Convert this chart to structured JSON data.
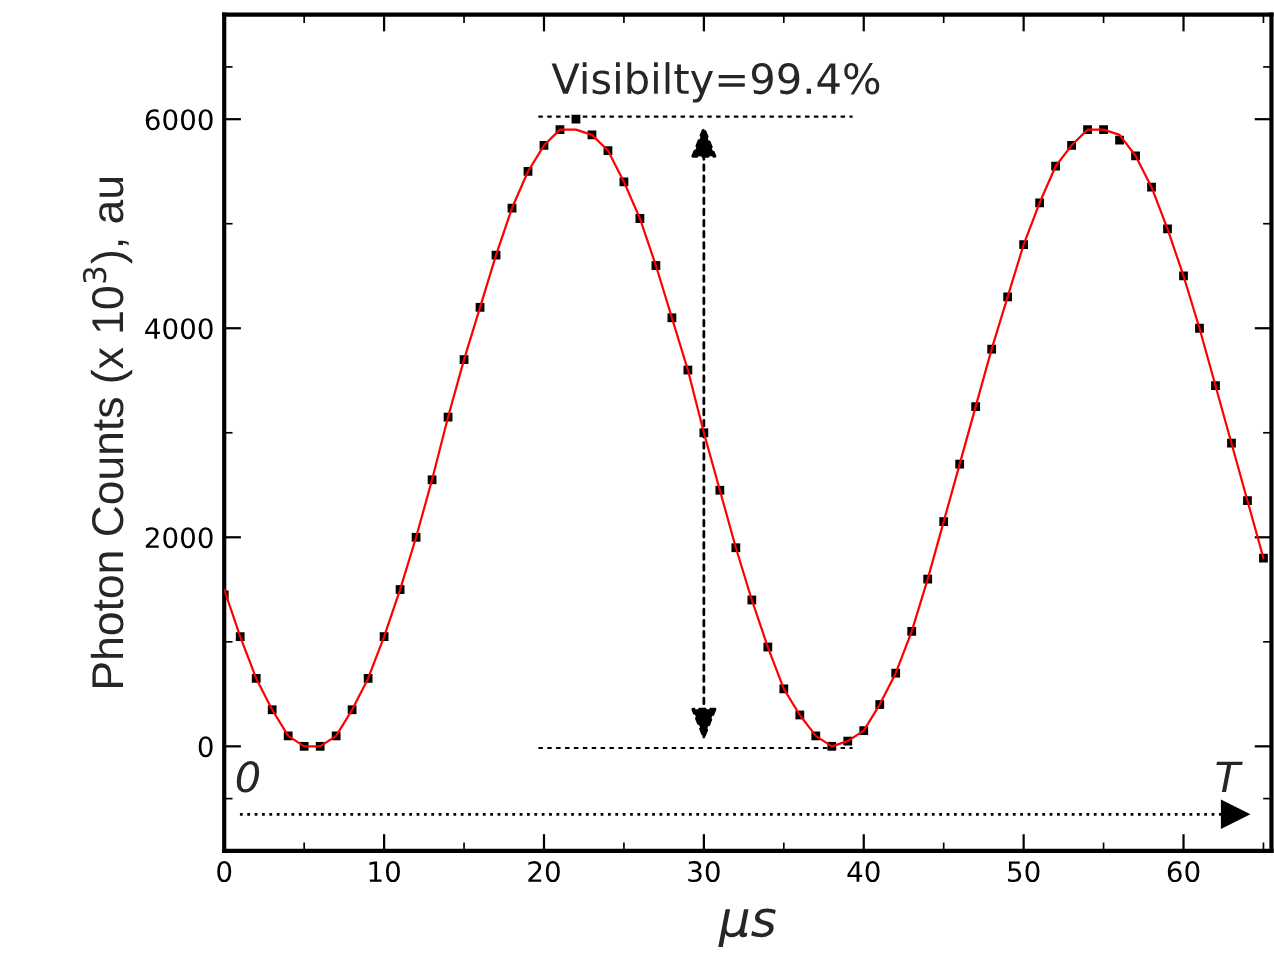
{
  "chart_data": {
    "type": "scatter",
    "xlabel": "μs",
    "ylabel": "Photon Counts (x 10$^{3}$), au",
    "x": [
      0,
      1,
      2,
      3,
      4,
      5,
      6,
      7,
      8,
      9,
      10,
      11,
      12,
      13,
      14,
      15,
      16,
      17,
      18,
      19,
      20,
      21,
      22,
      23,
      24,
      25,
      26,
      27,
      28,
      29,
      30,
      31,
      32,
      33,
      34,
      35,
      36,
      37,
      38,
      39,
      40,
      41,
      42,
      43,
      44,
      45,
      46,
      47,
      48,
      49,
      50,
      51,
      52,
      53,
      54,
      55,
      56,
      57,
      58,
      59,
      60,
      61,
      62,
      63,
      64,
      65
    ],
    "series": [
      {
        "color": "#000000",
        "marker": "square",
        "values": [
          1450,
          1050,
          650,
          350,
          100,
          0,
          0,
          100,
          350,
          650,
          1050,
          1500,
          2000,
          2550,
          3150,
          3700,
          4200,
          4700,
          5150,
          5500,
          5750,
          5900,
          6000,
          5850,
          5700,
          5400,
          5050,
          4600,
          4100,
          3600,
          3000,
          2450,
          1900,
          1400,
          950,
          550,
          300,
          100,
          0,
          50,
          150,
          400,
          700,
          1100,
          1600,
          2150,
          2700,
          3250,
          3800,
          4300,
          4800,
          5200,
          5550,
          5750,
          5900,
          5900,
          5800,
          5650,
          5350,
          4950,
          4500,
          4000,
          3450,
          2900,
          2350,
          1800
        ]
      },
      {
        "type": "line",
        "color": "#ff0000",
        "line_style": "solid",
        "values": [
          1500,
          1050,
          650,
          350,
          100,
          0,
          0,
          100,
          350,
          650,
          1050,
          1500,
          2000,
          2550,
          3150,
          3700,
          4200,
          4700,
          5150,
          5500,
          5750,
          5900,
          5900,
          5850,
          5700,
          5400,
          5050,
          4600,
          4100,
          3600,
          3000,
          2450,
          1900,
          1400,
          950,
          550,
          300,
          100,
          0,
          50,
          150,
          400,
          700,
          1100,
          1600,
          2150,
          2700,
          3250,
          3800,
          4300,
          4800,
          5200,
          5550,
          5750,
          5900,
          5900,
          5850,
          5650,
          5350,
          4950,
          4500,
          4000,
          3450,
          2900,
          2350,
          1800
        ]
      }
    ],
    "xlim": [
      0,
      65.5
    ],
    "xticks": [
      0,
      10,
      20,
      30,
      40,
      50,
      60
    ],
    "ylim": [
      -1000,
      7000
    ],
    "yticks": [
      {
        "value": -1000,
        "label": null
      },
      0,
      2000,
      4000,
      6000,
      {
        "value": 7000,
        "label": null
      }
    ],
    "grid": false,
    "legend": false,
    "ref_lines": [
      {
        "axis": "y",
        "value": -650,
        "line_style": "dotted",
        "color": "#000000"
      }
    ],
    "annotations": [
      "Visibilty=99.4%",
      "0",
      "T"
    ]
  }
}
